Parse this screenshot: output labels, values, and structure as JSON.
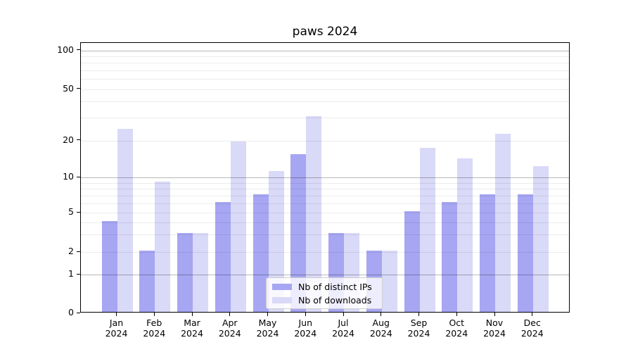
{
  "title": "paws 2024",
  "chart_data": {
    "type": "bar",
    "title": "paws 2024",
    "categories": [
      "Jan 2024",
      "Feb 2024",
      "Mar 2024",
      "Apr 2024",
      "May 2024",
      "Jun 2024",
      "Jul 2024",
      "Aug 2024",
      "Sep 2024",
      "Oct 2024",
      "Nov 2024",
      "Dec 2024"
    ],
    "series": [
      {
        "name": "Nb of distinct IPs",
        "color": "#a6a6f2",
        "values": [
          4,
          2,
          3,
          6,
          7,
          15,
          3,
          2,
          5,
          6,
          7,
          7
        ]
      },
      {
        "name": "Nb of downloads",
        "color": "#d9d9f8",
        "values": [
          24,
          9,
          3,
          19,
          11,
          30,
          3,
          2,
          17,
          14,
          22,
          12
        ]
      }
    ],
    "xlabel": "",
    "ylabel": "",
    "ylim": [
      0,
      120
    ],
    "yscale": "log-like (0 baseline, decades 1/10/100)",
    "yticks_labeled": [
      0,
      1,
      2,
      5,
      10,
      20,
      50,
      100
    ],
    "grid": "horizontal",
    "grid_major_at": [
      1,
      10,
      100
    ],
    "grid_minor_at": [
      2,
      3,
      4,
      5,
      6,
      7,
      8,
      9,
      20,
      30,
      40,
      50,
      60,
      70,
      80,
      90
    ],
    "legend_position": "lower center"
  },
  "colors": {
    "bar_ips": "#a6a6f2",
    "bar_downloads": "#d9d9f8",
    "grid_major": "#b8b8b8",
    "grid_minor": "#ececec",
    "frame": "#000000",
    "background": "#ffffff"
  }
}
